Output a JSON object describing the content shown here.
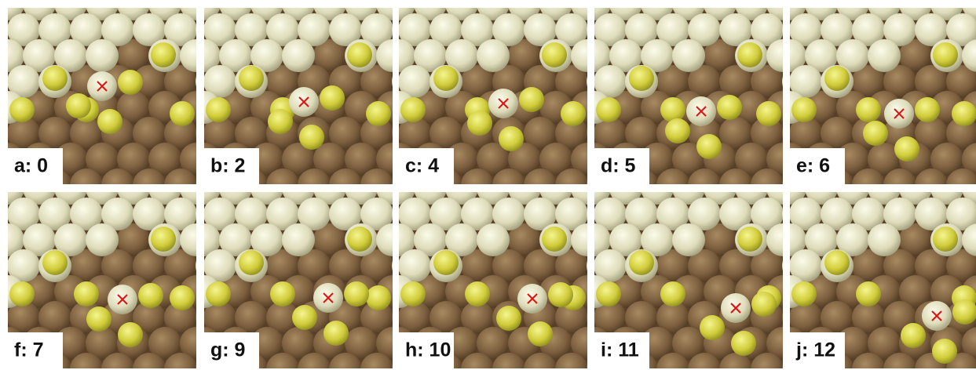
{
  "panels": [
    {
      "label": "a: 0"
    },
    {
      "label": "b: 2"
    },
    {
      "label": "c: 4"
    },
    {
      "label": "d: 5"
    },
    {
      "label": "e: 6"
    },
    {
      "label": "f: 7"
    },
    {
      "label": "g: 9"
    },
    {
      "label": "h: 10"
    },
    {
      "label": "i: 11"
    },
    {
      "label": "j: 12"
    }
  ]
}
